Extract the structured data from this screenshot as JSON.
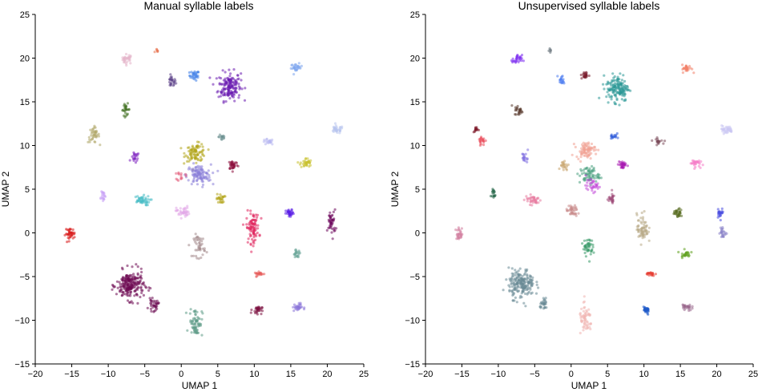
{
  "chart_data": [
    {
      "type": "scatter",
      "title": "Manual syllable labels",
      "xlabel": "UMAP 1",
      "ylabel": "UMAP 2",
      "xlim": [
        -20,
        25
      ],
      "ylim": [
        -15,
        25
      ],
      "xticks": [
        "−20",
        "−15",
        "−10",
        "−5",
        "0",
        "5",
        "10",
        "15",
        "20",
        "25"
      ],
      "yticks": [
        "25",
        "20",
        "15",
        "10",
        "5",
        "0",
        "−5",
        "−10",
        "−15"
      ],
      "grid": false,
      "clusters": [
        {
          "x": -3.3,
          "y": 20.8,
          "sx": 0.3,
          "sy": 0.3,
          "n": 6,
          "color": "#e8704a"
        },
        {
          "x": -7.4,
          "y": 19.9,
          "sx": 0.7,
          "sy": 0.5,
          "n": 30,
          "color": "#e3b3c8"
        },
        {
          "x": 1.8,
          "y": 18.0,
          "sx": 0.6,
          "sy": 0.5,
          "n": 30,
          "color": "#3f7fe8"
        },
        {
          "x": -1.3,
          "y": 17.3,
          "sx": 0.5,
          "sy": 0.6,
          "n": 25,
          "color": "#5a3e86"
        },
        {
          "x": 6.6,
          "y": 16.8,
          "sx": 1.4,
          "sy": 1.5,
          "n": 160,
          "color": "#6a1bb0"
        },
        {
          "x": 15.8,
          "y": 18.9,
          "sx": 0.7,
          "sy": 0.4,
          "n": 30,
          "color": "#7ea6ef"
        },
        {
          "x": -7.6,
          "y": 14.1,
          "sx": 0.5,
          "sy": 0.6,
          "n": 25,
          "color": "#3e6e1e"
        },
        {
          "x": -12.0,
          "y": 11.2,
          "sx": 0.7,
          "sy": 0.8,
          "n": 40,
          "color": "#b0a869"
        },
        {
          "x": 5.6,
          "y": 11.0,
          "sx": 0.4,
          "sy": 0.5,
          "n": 15,
          "color": "#6c8f8f"
        },
        {
          "x": 21.3,
          "y": 11.8,
          "sx": 0.8,
          "sy": 0.4,
          "n": 35,
          "color": "#b8c4ee"
        },
        {
          "x": 11.9,
          "y": 10.4,
          "sx": 0.7,
          "sy": 0.3,
          "n": 20,
          "color": "#b6b6f0"
        },
        {
          "x": -6.3,
          "y": 8.6,
          "sx": 0.5,
          "sy": 0.6,
          "n": 20,
          "color": "#7b1fbf"
        },
        {
          "x": 2.0,
          "y": 9.2,
          "sx": 1.3,
          "sy": 0.9,
          "n": 90,
          "color": "#b2a61c"
        },
        {
          "x": 2.4,
          "y": 6.6,
          "sx": 1.5,
          "sy": 1.1,
          "n": 110,
          "color": "#8a7fd8"
        },
        {
          "x": 7.1,
          "y": 7.8,
          "sx": 0.6,
          "sy": 0.5,
          "n": 35,
          "color": "#8c0f3c"
        },
        {
          "x": 17.1,
          "y": 8.0,
          "sx": 0.7,
          "sy": 0.5,
          "n": 35,
          "color": "#c9c12e"
        },
        {
          "x": 0.0,
          "y": 6.5,
          "sx": 0.5,
          "sy": 0.5,
          "n": 15,
          "color": "#e4607e"
        },
        {
          "x": -10.8,
          "y": 4.3,
          "sx": 0.4,
          "sy": 0.6,
          "n": 20,
          "color": "#c9a2f5"
        },
        {
          "x": -5.5,
          "y": 3.7,
          "sx": 1.1,
          "sy": 0.5,
          "n": 45,
          "color": "#45bcc4"
        },
        {
          "x": 5.4,
          "y": 3.9,
          "sx": 0.5,
          "sy": 0.5,
          "n": 25,
          "color": "#b3a418"
        },
        {
          "x": 0.2,
          "y": 2.4,
          "sx": 0.8,
          "sy": 0.6,
          "n": 40,
          "color": "#e1a8e8"
        },
        {
          "x": 14.9,
          "y": 2.2,
          "sx": 0.5,
          "sy": 0.4,
          "n": 30,
          "color": "#5a1ee6"
        },
        {
          "x": 20.6,
          "y": 1.2,
          "sx": 0.5,
          "sy": 1.3,
          "n": 45,
          "color": "#6e0a5c"
        },
        {
          "x": 9.8,
          "y": 0.6,
          "sx": 0.8,
          "sy": 1.6,
          "n": 90,
          "color": "#e0245c"
        },
        {
          "x": -15.2,
          "y": -0.1,
          "sx": 0.6,
          "sy": 0.6,
          "n": 40,
          "color": "#d81c1c"
        },
        {
          "x": 2.5,
          "y": -1.5,
          "sx": 0.7,
          "sy": 1.2,
          "n": 45,
          "color": "#a48a8c"
        },
        {
          "x": 15.8,
          "y": -2.4,
          "sx": 0.5,
          "sy": 0.4,
          "n": 25,
          "color": "#6ea89a"
        },
        {
          "x": 10.7,
          "y": -4.7,
          "sx": 0.6,
          "sy": 0.2,
          "n": 20,
          "color": "#e55a58"
        },
        {
          "x": -7.0,
          "y": -6.0,
          "sx": 1.7,
          "sy": 1.5,
          "n": 220,
          "color": "#6e0a52"
        },
        {
          "x": -3.8,
          "y": -8.3,
          "sx": 0.6,
          "sy": 0.6,
          "n": 35,
          "color": "#6a0a50"
        },
        {
          "x": 2.0,
          "y": -10.2,
          "sx": 0.8,
          "sy": 1.5,
          "n": 70,
          "color": "#5c9a86"
        },
        {
          "x": 10.4,
          "y": -8.8,
          "sx": 0.6,
          "sy": 0.4,
          "n": 30,
          "color": "#7c1040"
        },
        {
          "x": 15.9,
          "y": -8.5,
          "sx": 0.6,
          "sy": 0.4,
          "n": 30,
          "color": "#8a74d8"
        }
      ]
    },
    {
      "type": "scatter",
      "title": "Unsupervised syllable labels",
      "xlabel": "UMAP 1",
      "ylabel": "UMAP 2",
      "xlim": [
        -20,
        25
      ],
      "ylim": [
        -15,
        25
      ],
      "xticks": [
        "−20",
        "−15",
        "−10",
        "−5",
        "0",
        "5",
        "10",
        "15",
        "20",
        "25"
      ],
      "yticks": [
        "25",
        "20",
        "15",
        "10",
        "5",
        "0",
        "−5",
        "−10",
        "−15"
      ],
      "grid": false,
      "clusters": [
        {
          "x": -3.0,
          "y": 20.8,
          "sx": 0.2,
          "sy": 0.3,
          "n": 5,
          "color": "#5a6670"
        },
        {
          "x": -7.4,
          "y": 19.8,
          "sx": 0.6,
          "sy": 0.5,
          "n": 30,
          "color": "#7b2cf0"
        },
        {
          "x": -1.3,
          "y": 17.5,
          "sx": 0.4,
          "sy": 0.5,
          "n": 20,
          "color": "#4f7ef0"
        },
        {
          "x": 1.9,
          "y": 18.0,
          "sx": 0.5,
          "sy": 0.4,
          "n": 25,
          "color": "#7a1e2e"
        },
        {
          "x": 6.4,
          "y": 16.6,
          "sx": 1.4,
          "sy": 1.4,
          "n": 150,
          "color": "#2a9896"
        },
        {
          "x": 15.9,
          "y": 18.8,
          "sx": 0.6,
          "sy": 0.4,
          "n": 30,
          "color": "#f2826a"
        },
        {
          "x": -7.2,
          "y": 14.0,
          "sx": 0.5,
          "sy": 0.5,
          "n": 25,
          "color": "#5a3a2e"
        },
        {
          "x": -13.0,
          "y": 11.8,
          "sx": 0.4,
          "sy": 0.3,
          "n": 15,
          "color": "#7e1a2a"
        },
        {
          "x": -12.2,
          "y": 10.6,
          "sx": 0.5,
          "sy": 0.5,
          "n": 20,
          "color": "#ea4a5a"
        },
        {
          "x": 5.8,
          "y": 11.1,
          "sx": 0.4,
          "sy": 0.5,
          "n": 15,
          "color": "#2a58d8"
        },
        {
          "x": 12.0,
          "y": 10.5,
          "sx": 0.7,
          "sy": 0.3,
          "n": 20,
          "color": "#7a4a5a"
        },
        {
          "x": 21.3,
          "y": 11.8,
          "sx": 0.8,
          "sy": 0.4,
          "n": 35,
          "color": "#c8c4f2"
        },
        {
          "x": 2.0,
          "y": 9.5,
          "sx": 1.2,
          "sy": 0.8,
          "n": 80,
          "color": "#f0a092"
        },
        {
          "x": -6.3,
          "y": 8.6,
          "sx": 0.4,
          "sy": 0.6,
          "n": 18,
          "color": "#7e6ee0"
        },
        {
          "x": -1.0,
          "y": 7.7,
          "sx": 0.6,
          "sy": 0.6,
          "n": 20,
          "color": "#c7a36a"
        },
        {
          "x": 2.5,
          "y": 6.6,
          "sx": 1.2,
          "sy": 0.9,
          "n": 70,
          "color": "#4aa080"
        },
        {
          "x": 3.0,
          "y": 5.4,
          "sx": 0.9,
          "sy": 0.6,
          "n": 35,
          "color": "#c24ad8"
        },
        {
          "x": 7.0,
          "y": 7.8,
          "sx": 0.5,
          "sy": 0.5,
          "n": 30,
          "color": "#a81ab0"
        },
        {
          "x": 17.0,
          "y": 8.0,
          "sx": 0.6,
          "sy": 0.4,
          "n": 30,
          "color": "#f57ec8"
        },
        {
          "x": -10.7,
          "y": 4.5,
          "sx": 0.3,
          "sy": 0.6,
          "n": 18,
          "color": "#2a6a4c"
        },
        {
          "x": -5.2,
          "y": 3.8,
          "sx": 1.0,
          "sy": 0.5,
          "n": 40,
          "color": "#e87ca0"
        },
        {
          "x": 5.5,
          "y": 3.9,
          "sx": 0.5,
          "sy": 0.5,
          "n": 25,
          "color": "#9e4a78"
        },
        {
          "x": 0.1,
          "y": 2.5,
          "sx": 0.7,
          "sy": 0.6,
          "n": 40,
          "color": "#c98a8a"
        },
        {
          "x": 9.8,
          "y": 0.5,
          "sx": 0.7,
          "sy": 1.5,
          "n": 70,
          "color": "#b8aa86"
        },
        {
          "x": 14.7,
          "y": 2.3,
          "sx": 0.5,
          "sy": 0.4,
          "n": 30,
          "color": "#556a1e"
        },
        {
          "x": 20.5,
          "y": 2.3,
          "sx": 0.4,
          "sy": 0.5,
          "n": 25,
          "color": "#4a4ee0"
        },
        {
          "x": 20.8,
          "y": 0.0,
          "sx": 0.4,
          "sy": 0.6,
          "n": 25,
          "color": "#8a84c8"
        },
        {
          "x": -15.3,
          "y": -0.1,
          "sx": 0.5,
          "sy": 0.6,
          "n": 30,
          "color": "#d27e9e"
        },
        {
          "x": 2.3,
          "y": -1.6,
          "sx": 0.6,
          "sy": 1.0,
          "n": 45,
          "color": "#3a9a6a"
        },
        {
          "x": 15.7,
          "y": -2.4,
          "sx": 0.6,
          "sy": 0.4,
          "n": 25,
          "color": "#5ea01e"
        },
        {
          "x": 10.8,
          "y": -4.7,
          "sx": 0.6,
          "sy": 0.2,
          "n": 20,
          "color": "#e63a30"
        },
        {
          "x": -6.8,
          "y": -5.8,
          "sx": 1.6,
          "sy": 1.5,
          "n": 200,
          "color": "#6a8a96"
        },
        {
          "x": -3.7,
          "y": -8.2,
          "sx": 0.5,
          "sy": 0.5,
          "n": 30,
          "color": "#6a8a96"
        },
        {
          "x": 2.0,
          "y": -10.0,
          "sx": 0.8,
          "sy": 1.5,
          "n": 60,
          "color": "#f0b4b0"
        },
        {
          "x": 10.3,
          "y": -8.9,
          "sx": 0.5,
          "sy": 0.4,
          "n": 30,
          "color": "#1e5ac8"
        },
        {
          "x": 15.9,
          "y": -8.5,
          "sx": 0.6,
          "sy": 0.4,
          "n": 30,
          "color": "#9a6a8e"
        }
      ]
    }
  ]
}
